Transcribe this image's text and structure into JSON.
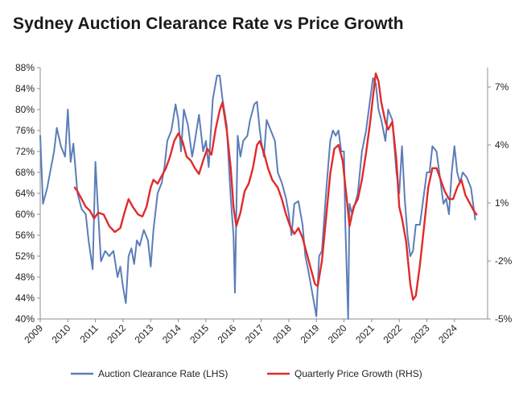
{
  "chart_data": {
    "type": "line",
    "title": "Sydney Auction Clearance Rate vs Price Growth",
    "xlabel": "",
    "ylabel": "",
    "y_left": {
      "min": 40,
      "max": 88,
      "step": 4,
      "ticks": [
        "40%",
        "44%",
        "48%",
        "52%",
        "56%",
        "60%",
        "64%",
        "68%",
        "72%",
        "76%",
        "80%",
        "84%",
        "88%"
      ]
    },
    "y_right": {
      "min": -5,
      "max": 8,
      "step": 3,
      "ticks": [
        "-5%",
        "-2%",
        "1%",
        "4%",
        "7%"
      ]
    },
    "x_range": [
      2009.0,
      2025.2
    ],
    "x_ticks": [
      "2009",
      "2010",
      "2011",
      "2012",
      "2013",
      "2014",
      "2015",
      "2016",
      "2017",
      "2018",
      "2019",
      "2020",
      "2021",
      "2022",
      "2023",
      "2024"
    ],
    "legend_position": "bottom",
    "grid": false,
    "series": [
      {
        "name": "Auction Clearance Rate (LHS)",
        "axis": "left",
        "color": "#5b7db8",
        "points": [
          [
            2009.0,
            75
          ],
          [
            2009.1,
            62
          ],
          [
            2009.25,
            65
          ],
          [
            2009.5,
            72
          ],
          [
            2009.6,
            76.5
          ],
          [
            2009.75,
            73
          ],
          [
            2009.9,
            71
          ],
          [
            2010.0,
            80
          ],
          [
            2010.1,
            70
          ],
          [
            2010.2,
            73.5
          ],
          [
            2010.35,
            64
          ],
          [
            2010.5,
            61
          ],
          [
            2010.65,
            60
          ],
          [
            2010.75,
            55
          ],
          [
            2010.9,
            49.5
          ],
          [
            2011.0,
            70
          ],
          [
            2011.1,
            60
          ],
          [
            2011.2,
            51
          ],
          [
            2011.35,
            53
          ],
          [
            2011.5,
            52
          ],
          [
            2011.65,
            53
          ],
          [
            2011.8,
            48
          ],
          [
            2011.9,
            50
          ],
          [
            2012.0,
            46
          ],
          [
            2012.1,
            43
          ],
          [
            2012.2,
            52
          ],
          [
            2012.3,
            53.5
          ],
          [
            2012.4,
            50.5
          ],
          [
            2012.5,
            55
          ],
          [
            2012.6,
            54
          ],
          [
            2012.75,
            57
          ],
          [
            2012.9,
            55
          ],
          [
            2013.0,
            50
          ],
          [
            2013.1,
            57
          ],
          [
            2013.25,
            64
          ],
          [
            2013.4,
            66
          ],
          [
            2013.5,
            69
          ],
          [
            2013.6,
            74
          ],
          [
            2013.75,
            76
          ],
          [
            2013.9,
            81
          ],
          [
            2014.0,
            78
          ],
          [
            2014.1,
            72
          ],
          [
            2014.2,
            80
          ],
          [
            2014.35,
            77
          ],
          [
            2014.5,
            71
          ],
          [
            2014.6,
            74
          ],
          [
            2014.75,
            79
          ],
          [
            2014.9,
            72
          ],
          [
            2015.0,
            74
          ],
          [
            2015.1,
            69
          ],
          [
            2015.25,
            82
          ],
          [
            2015.4,
            86.5
          ],
          [
            2015.5,
            86.5
          ],
          [
            2015.6,
            82
          ],
          [
            2015.75,
            77
          ],
          [
            2015.9,
            63
          ],
          [
            2016.0,
            56
          ],
          [
            2016.05,
            45
          ],
          [
            2016.15,
            75
          ],
          [
            2016.25,
            71
          ],
          [
            2016.35,
            74
          ],
          [
            2016.5,
            75
          ],
          [
            2016.6,
            78
          ],
          [
            2016.75,
            81
          ],
          [
            2016.85,
            81.5
          ],
          [
            2016.95,
            76
          ],
          [
            2017.0,
            74
          ],
          [
            2017.1,
            71
          ],
          [
            2017.2,
            78
          ],
          [
            2017.35,
            76
          ],
          [
            2017.5,
            74
          ],
          [
            2017.6,
            68
          ],
          [
            2017.75,
            66
          ],
          [
            2017.9,
            63
          ],
          [
            2018.0,
            60
          ],
          [
            2018.1,
            56
          ],
          [
            2018.2,
            62
          ],
          [
            2018.35,
            62.5
          ],
          [
            2018.5,
            58
          ],
          [
            2018.6,
            52
          ],
          [
            2018.7,
            49.5
          ],
          [
            2018.85,
            45
          ],
          [
            2018.95,
            42
          ],
          [
            2019.0,
            40.5
          ],
          [
            2019.1,
            52
          ],
          [
            2019.2,
            53
          ],
          [
            2019.35,
            64
          ],
          [
            2019.5,
            74
          ],
          [
            2019.6,
            76
          ],
          [
            2019.7,
            75
          ],
          [
            2019.8,
            76
          ],
          [
            2019.9,
            72
          ],
          [
            2020.0,
            72
          ],
          [
            2020.05,
            58
          ],
          [
            2020.15,
            40
          ],
          [
            2020.2,
            62
          ],
          [
            2020.3,
            60
          ],
          [
            2020.5,
            64
          ],
          [
            2020.65,
            72
          ],
          [
            2020.8,
            76
          ],
          [
            2020.95,
            82
          ],
          [
            2021.05,
            86
          ],
          [
            2021.15,
            85
          ],
          [
            2021.25,
            80
          ],
          [
            2021.35,
            78
          ],
          [
            2021.5,
            74
          ],
          [
            2021.6,
            80
          ],
          [
            2021.75,
            78
          ],
          [
            2021.9,
            68
          ],
          [
            2022.0,
            64
          ],
          [
            2022.1,
            73
          ],
          [
            2022.2,
            63
          ],
          [
            2022.3,
            56
          ],
          [
            2022.4,
            52
          ],
          [
            2022.5,
            53
          ],
          [
            2022.6,
            58
          ],
          [
            2022.75,
            58
          ],
          [
            2022.85,
            62
          ],
          [
            2023.0,
            68
          ],
          [
            2023.1,
            68
          ],
          [
            2023.2,
            73
          ],
          [
            2023.35,
            72
          ],
          [
            2023.5,
            66
          ],
          [
            2023.6,
            62
          ],
          [
            2023.7,
            63
          ],
          [
            2023.8,
            60
          ],
          [
            2023.9,
            68
          ],
          [
            2024.0,
            73
          ],
          [
            2024.1,
            68
          ],
          [
            2024.2,
            66
          ],
          [
            2024.3,
            68
          ],
          [
            2024.45,
            67
          ],
          [
            2024.6,
            65
          ],
          [
            2024.75,
            59
          ]
        ]
      },
      {
        "name": "Quarterly Price Growth (RHS)",
        "axis": "right",
        "color": "#e02b2b",
        "points": [
          [
            2010.25,
            1.8
          ],
          [
            2010.35,
            1.6
          ],
          [
            2010.5,
            1.2
          ],
          [
            2010.65,
            0.8
          ],
          [
            2010.8,
            0.6
          ],
          [
            2010.95,
            0.2
          ],
          [
            2011.1,
            0.5
          ],
          [
            2011.3,
            0.4
          ],
          [
            2011.5,
            -0.2
          ],
          [
            2011.7,
            -0.5
          ],
          [
            2011.9,
            -0.3
          ],
          [
            2012.05,
            0.5
          ],
          [
            2012.2,
            1.2
          ],
          [
            2012.35,
            0.8
          ],
          [
            2012.55,
            0.4
          ],
          [
            2012.7,
            0.3
          ],
          [
            2012.85,
            0.8
          ],
          [
            2013.0,
            1.8
          ],
          [
            2013.1,
            2.2
          ],
          [
            2013.25,
            2.0
          ],
          [
            2013.4,
            2.4
          ],
          [
            2013.55,
            2.8
          ],
          [
            2013.7,
            3.4
          ],
          [
            2013.85,
            4.2
          ],
          [
            2014.0,
            4.6
          ],
          [
            2014.15,
            4.2
          ],
          [
            2014.3,
            3.4
          ],
          [
            2014.45,
            3.2
          ],
          [
            2014.6,
            2.8
          ],
          [
            2014.75,
            2.5
          ],
          [
            2014.9,
            3.2
          ],
          [
            2015.05,
            3.8
          ],
          [
            2015.2,
            3.5
          ],
          [
            2015.35,
            4.8
          ],
          [
            2015.5,
            5.8
          ],
          [
            2015.6,
            6.2
          ],
          [
            2015.75,
            4.8
          ],
          [
            2015.9,
            2.8
          ],
          [
            2016.0,
            0.8
          ],
          [
            2016.1,
            -0.2
          ],
          [
            2016.25,
            0.5
          ],
          [
            2016.4,
            1.6
          ],
          [
            2016.55,
            2.0
          ],
          [
            2016.7,
            2.8
          ],
          [
            2016.85,
            4.0
          ],
          [
            2016.95,
            4.2
          ],
          [
            2017.1,
            3.6
          ],
          [
            2017.25,
            2.8
          ],
          [
            2017.4,
            2.2
          ],
          [
            2017.6,
            1.8
          ],
          [
            2017.75,
            1.2
          ],
          [
            2017.9,
            0.4
          ],
          [
            2018.05,
            -0.2
          ],
          [
            2018.2,
            -0.6
          ],
          [
            2018.35,
            -0.3
          ],
          [
            2018.5,
            -0.8
          ],
          [
            2018.65,
            -1.6
          ],
          [
            2018.8,
            -2.4
          ],
          [
            2018.95,
            -3.2
          ],
          [
            2019.05,
            -3.3
          ],
          [
            2019.2,
            -2.0
          ],
          [
            2019.35,
            0.2
          ],
          [
            2019.5,
            2.5
          ],
          [
            2019.65,
            3.8
          ],
          [
            2019.8,
            4.0
          ],
          [
            2019.95,
            3.2
          ],
          [
            2020.1,
            1.2
          ],
          [
            2020.2,
            -0.2
          ],
          [
            2020.35,
            0.8
          ],
          [
            2020.5,
            1.2
          ],
          [
            2020.65,
            2.2
          ],
          [
            2020.8,
            3.6
          ],
          [
            2020.95,
            5.2
          ],
          [
            2021.05,
            6.5
          ],
          [
            2021.15,
            7.7
          ],
          [
            2021.25,
            7.3
          ],
          [
            2021.35,
            6.2
          ],
          [
            2021.5,
            5.2
          ],
          [
            2021.6,
            4.8
          ],
          [
            2021.75,
            5.2
          ],
          [
            2021.9,
            3.2
          ],
          [
            2022.0,
            0.8
          ],
          [
            2022.1,
            0.2
          ],
          [
            2022.25,
            -1.0
          ],
          [
            2022.4,
            -3.2
          ],
          [
            2022.5,
            -4.0
          ],
          [
            2022.6,
            -3.8
          ],
          [
            2022.75,
            -2.2
          ],
          [
            2022.9,
            -0.2
          ],
          [
            2023.05,
            1.8
          ],
          [
            2023.2,
            2.8
          ],
          [
            2023.35,
            2.8
          ],
          [
            2023.5,
            2.2
          ],
          [
            2023.65,
            1.6
          ],
          [
            2023.8,
            1.2
          ],
          [
            2023.95,
            1.2
          ],
          [
            2024.1,
            1.8
          ],
          [
            2024.25,
            2.2
          ],
          [
            2024.4,
            1.4
          ],
          [
            2024.55,
            1.0
          ],
          [
            2024.7,
            0.6
          ],
          [
            2024.8,
            0.4
          ]
        ]
      }
    ]
  }
}
